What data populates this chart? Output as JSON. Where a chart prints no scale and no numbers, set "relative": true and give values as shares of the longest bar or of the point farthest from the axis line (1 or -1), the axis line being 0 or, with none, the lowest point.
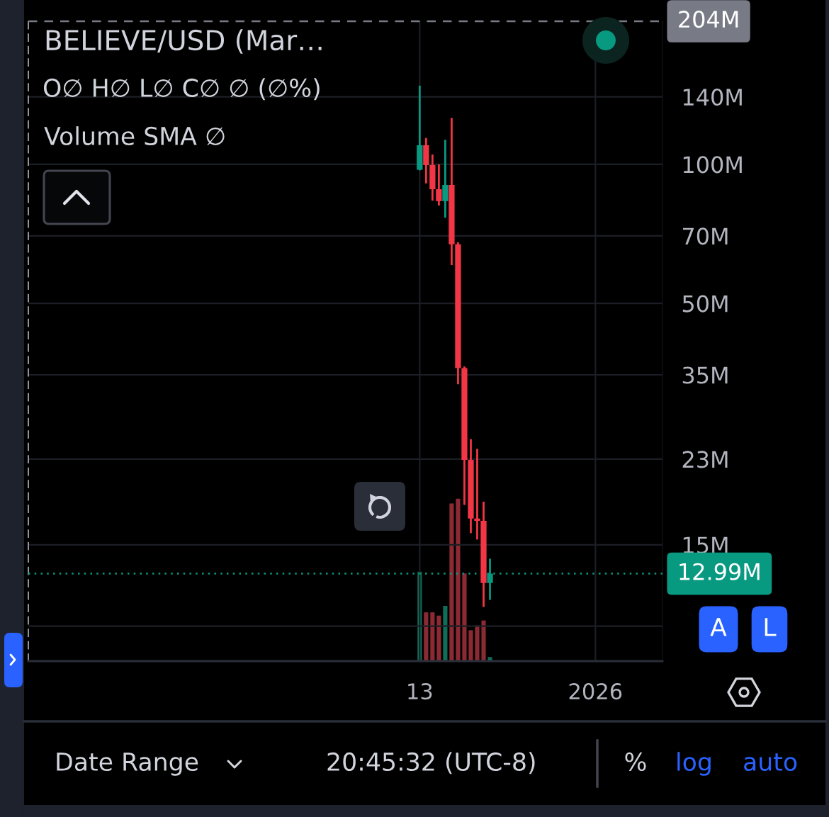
{
  "chart_data": [
    {
      "type": "candlestick",
      "title": "BELIEVE/USD (Mar…",
      "subtitle": "O∅ H∅ L∅ C∅ ∅ (∅%)",
      "x": [
        "2025-09-13",
        "2025-09-17",
        "2025-09-21",
        "2025-09-25",
        "2025-09-29",
        "2025-10-03",
        "2025-10-07",
        "2025-10-11",
        "2025-10-15",
        "2025-10-19",
        "2025-10-23",
        "2025-10-27"
      ],
      "ohlc": [
        [
          97.3,
          148,
          97.0,
          110
        ],
        [
          110,
          114,
          90.9,
          99.6
        ],
        [
          99.6,
          105,
          83.4,
          88.3
        ],
        [
          88.3,
          100,
          81.4,
          83.2
        ],
        [
          83.2,
          113,
          76.6,
          90.2
        ],
        [
          90.2,
          126,
          60.5,
          67.1
        ],
        [
          67.1,
          67.8,
          33.4,
          36.2
        ],
        [
          36.2,
          36.5,
          18.3,
          22.9
        ],
        [
          22.9,
          25.4,
          15.9,
          17.1
        ],
        [
          17.1,
          24.2,
          15.4,
          16.9
        ],
        [
          16.9,
          18.6,
          11.0,
          12.4
        ],
        [
          12.4,
          14.0,
          11.4,
          12.99
        ]
      ],
      "colors": [
        "#089981",
        "#f23645",
        "#f23645",
        "#f23645",
        "#089981",
        "#f23645",
        "#f23645",
        "#f23645",
        "#f23645",
        "#f23645",
        "#f23645",
        "#089981"
      ],
      "xlim": [
        "2025-01-11",
        "2026-02-12"
      ],
      "xticks": [
        {
          "value": "2025-09-13",
          "label": "13"
        },
        {
          "value": "2026-01-01",
          "label": "2026"
        }
      ],
      "ylim": [
        8.4,
        204
      ],
      "yticks": [
        {
          "value": 10,
          "label": null
        },
        {
          "value": 15,
          "label": "15M"
        },
        {
          "value": 23,
          "label": "23M"
        },
        {
          "value": 35,
          "label": "35M"
        },
        {
          "value": 50,
          "label": "50M"
        },
        {
          "value": 70,
          "label": "70M"
        },
        {
          "value": 100,
          "label": "100M"
        },
        {
          "value": 140,
          "label": "140M"
        }
      ],
      "log": true,
      "grid": true,
      "ref_lines": [
        {
          "axis": "y",
          "value": 204,
          "label": "204M",
          "color": "#787b86",
          "line_style": "dashed"
        },
        {
          "axis": "y",
          "value": 12.99,
          "label": "12.99M",
          "color": "#089981",
          "line_style": "dotted"
        }
      ],
      "annotations": [
        "A",
        "L",
        "Date Range",
        "20:45:32 (UTC-8)",
        "%",
        "log",
        "auto"
      ]
    },
    {
      "type": "bar",
      "title": "Volume SMA ∅",
      "relative": true,
      "x": [
        "2025-09-13",
        "2025-09-17",
        "2025-09-21",
        "2025-09-25",
        "2025-09-29",
        "2025-10-03",
        "2025-10-07",
        "2025-10-11",
        "2025-10-15",
        "2025-10-19",
        "2025-10-23",
        "2025-10-27"
      ],
      "xlim": [
        "2025-01-11",
        "2026-02-12"
      ],
      "values": [
        0.55,
        0.3,
        0.3,
        0.28,
        0.34,
        0.97,
        1,
        0.54,
        0.19,
        0.22,
        0.25,
        0.025
      ],
      "colors": [
        "#0f6e59",
        "#8c2a34",
        "#8c2a34",
        "#8c2a34",
        "#0f6e59",
        "#8c2a34",
        "#8c2a34",
        "#8c2a34",
        "#8c2a34",
        "#8c2a34",
        "#8c2a34",
        "#0f6e59"
      ]
    }
  ]
}
